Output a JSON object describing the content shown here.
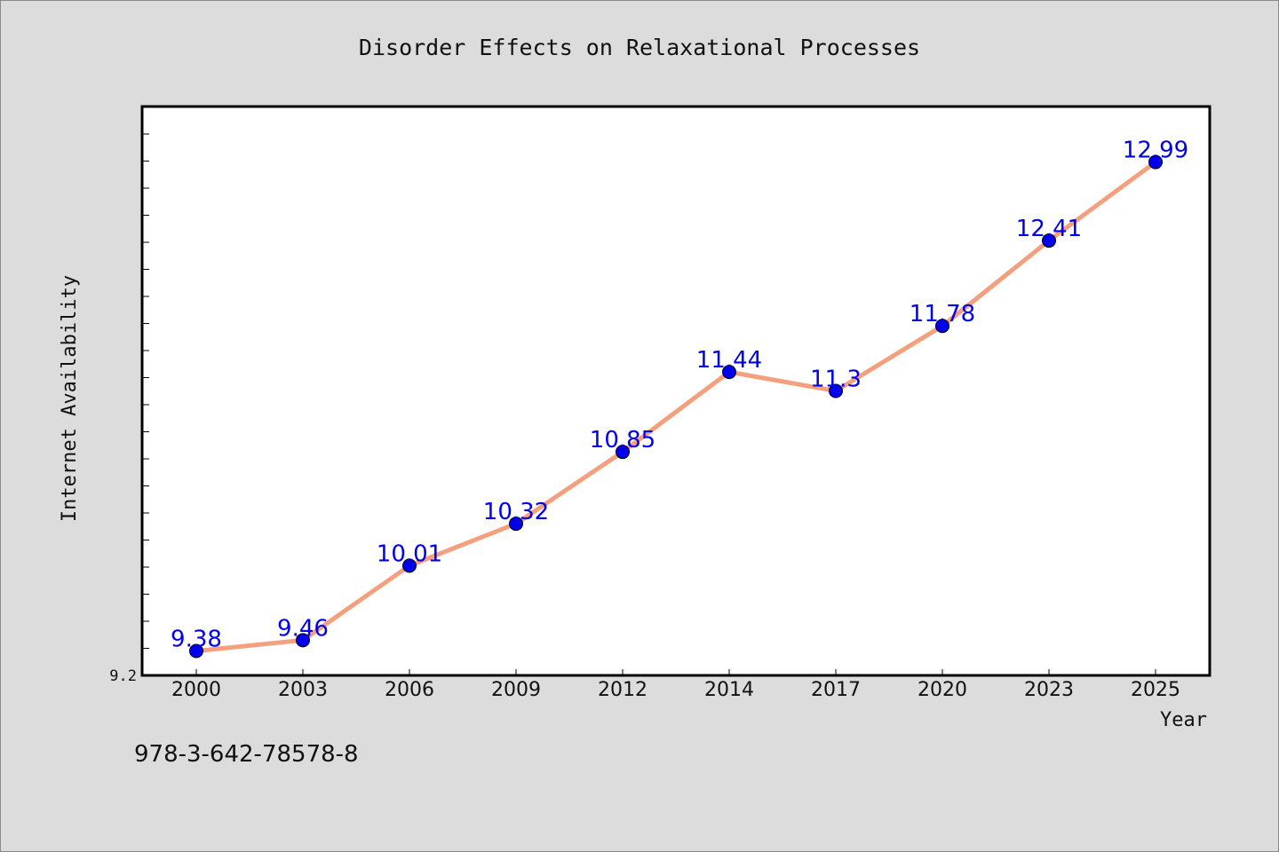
{
  "chart_data": {
    "type": "line",
    "title": "Disorder Effects on Relaxational Processes",
    "xlabel": "Year",
    "ylabel": "Internet Availability",
    "categories": [
      "2000",
      "2003",
      "2006",
      "2009",
      "2012",
      "2014",
      "2017",
      "2020",
      "2023",
      "2025"
    ],
    "series": [
      {
        "values": [
          9.38,
          9.46,
          10.01,
          10.32,
          10.85,
          11.44,
          11.3,
          11.78,
          12.41,
          12.99
        ],
        "data_labels": [
          "9.38",
          "9.46",
          "10.01",
          "10.32",
          "10.85",
          "11.44",
          "11.3",
          "11.78",
          "12.41",
          "12.99"
        ]
      }
    ],
    "ylim": [
      9.2,
      13.4
    ],
    "y_tick_labels": [
      "9.2"
    ],
    "grid": false,
    "legend": "none",
    "colors": {
      "line": "#f4a07e",
      "marker": "#0000ee",
      "marker_edge": "#000000",
      "data_label": "#0000ee",
      "plot_background": "#ffffff",
      "figure_background": "#dcdcdc"
    }
  },
  "footer": {
    "isbn": "978-3-642-78578-8"
  }
}
